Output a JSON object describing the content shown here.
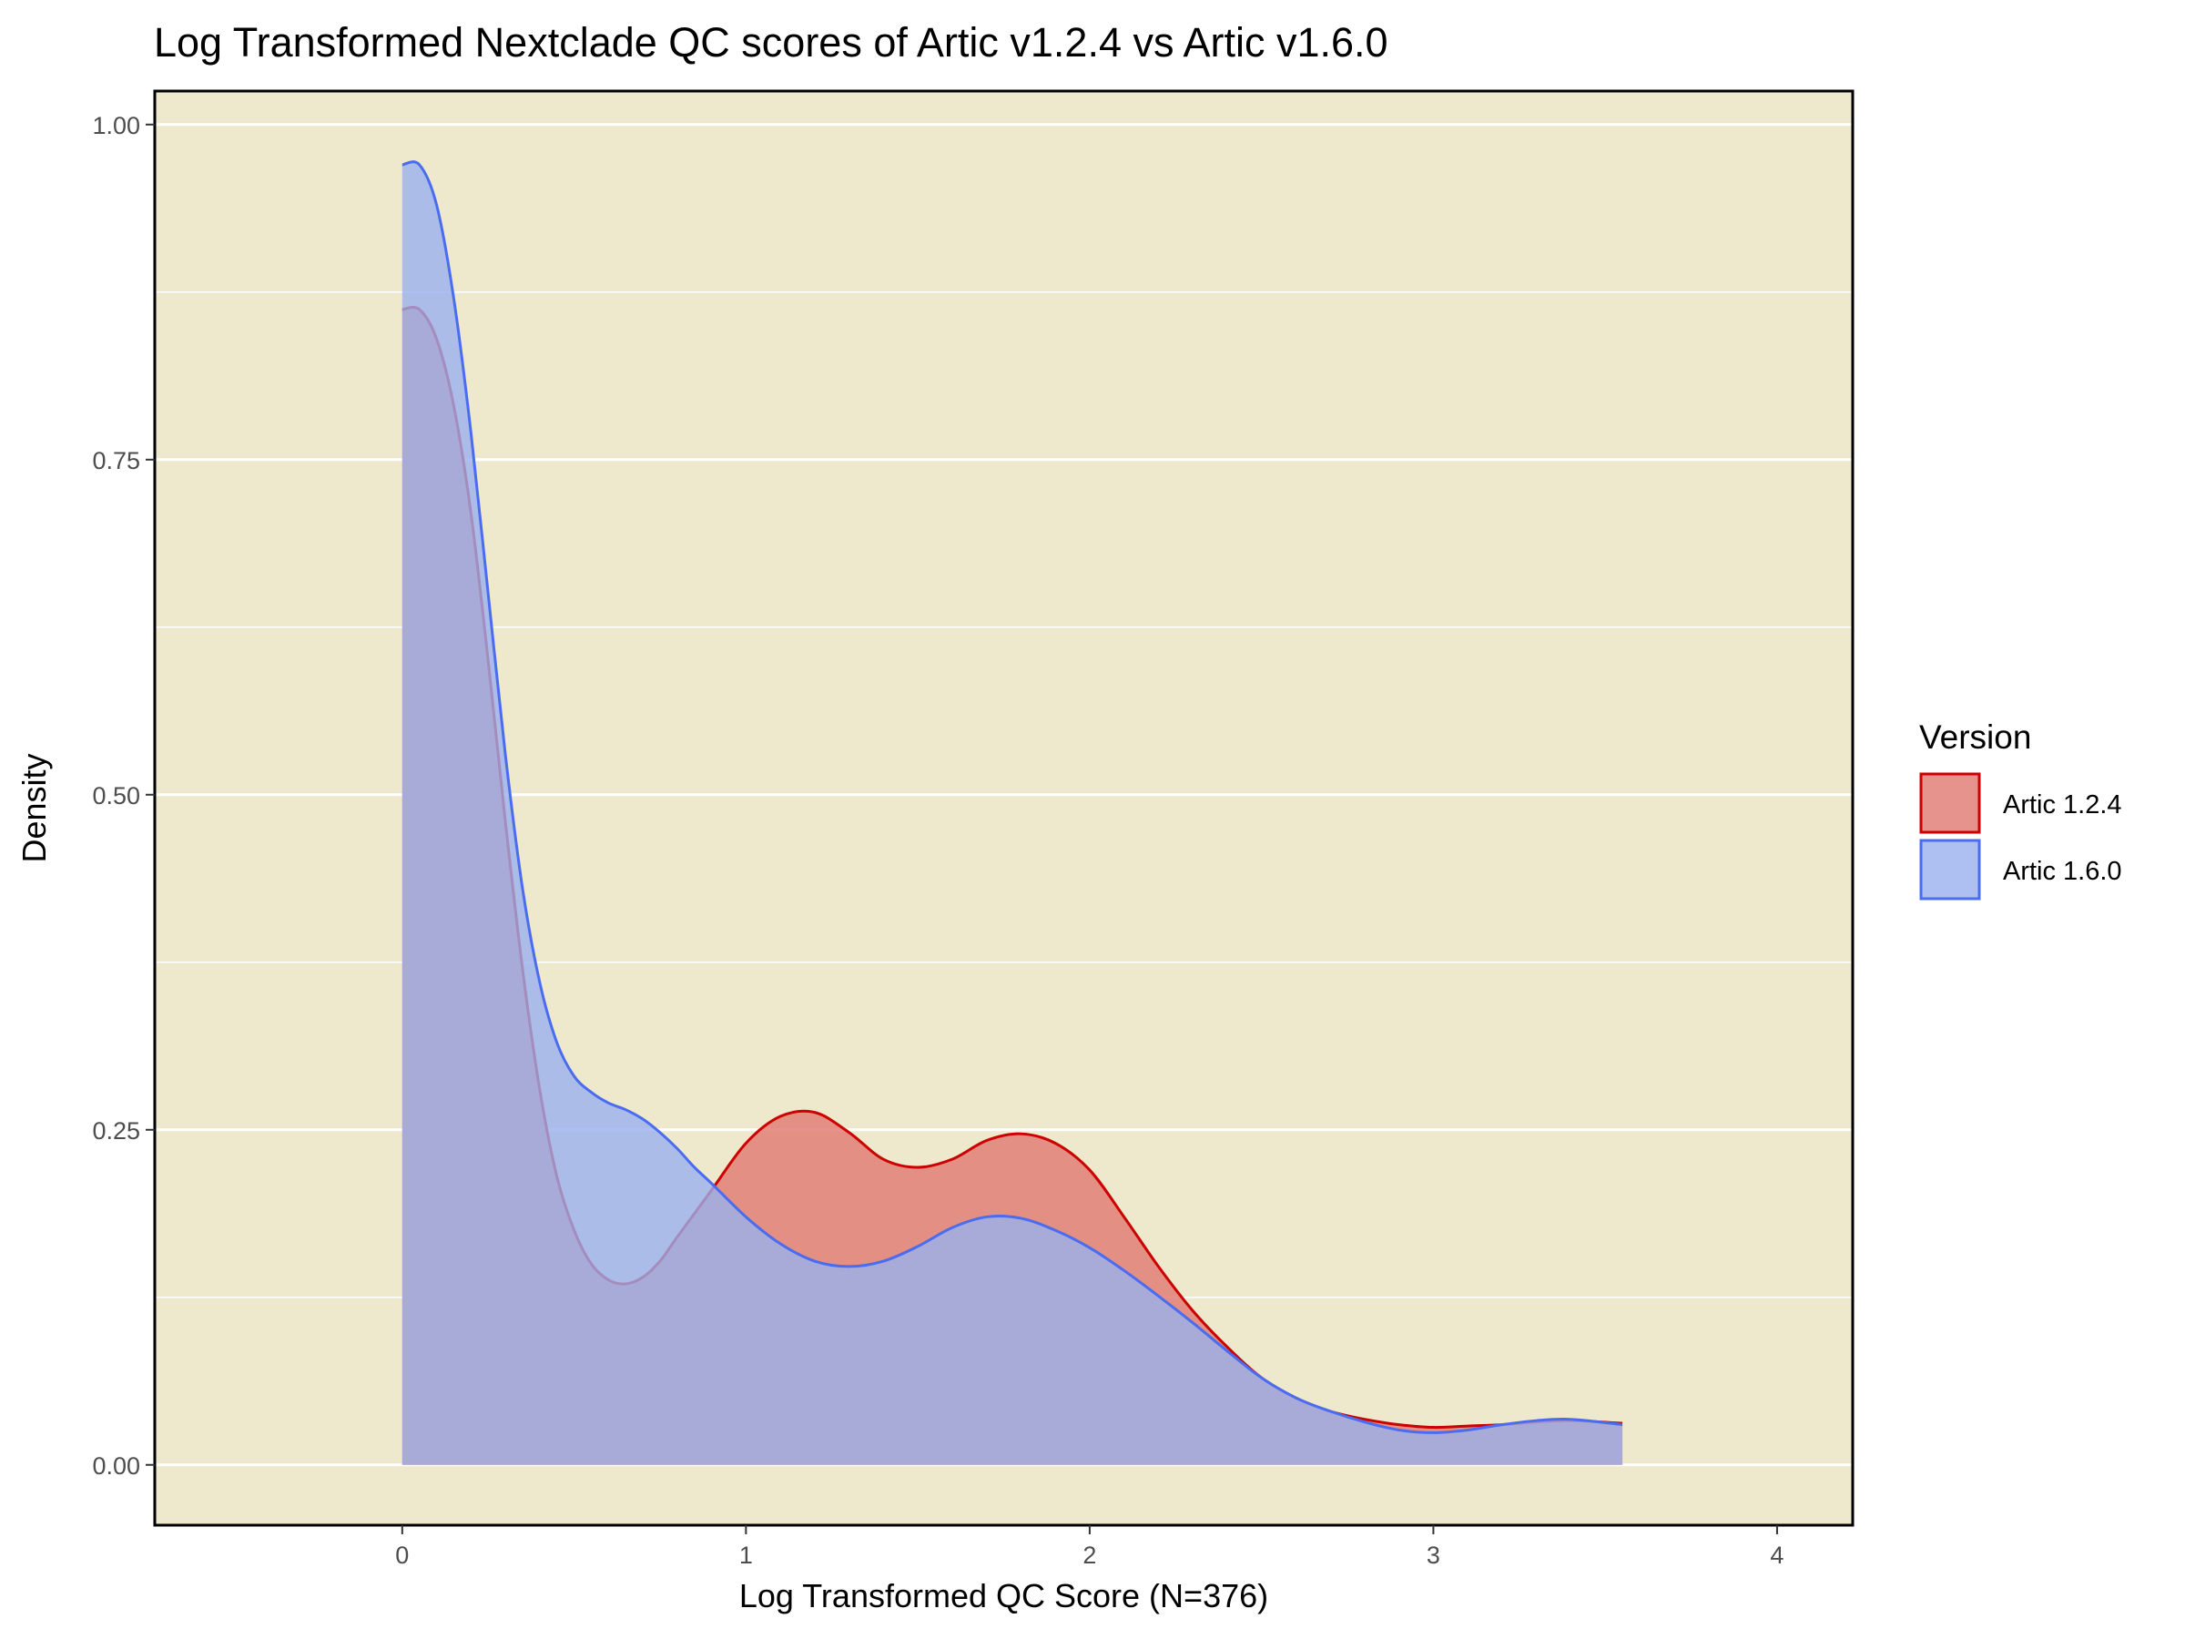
{
  "chart_data": {
    "type": "area",
    "title": "Log Transformed Nextclade QC scores of Artic v1.2.4 vs Artic v1.6.0",
    "xlabel": "Log Transformed QC Score (N=376)",
    "ylabel": "Density",
    "xlim": [
      -0.72,
      4.22
    ],
    "ylim": [
      -0.045,
      1.025
    ],
    "x_ticks": [
      0,
      1,
      2,
      3,
      4
    ],
    "x_tick_labels": [
      "0",
      "1",
      "2",
      "3",
      "4"
    ],
    "y_ticks": [
      0,
      0.25,
      0.5,
      0.75,
      1.0
    ],
    "y_tick_labels": [
      "0.00",
      "0.25",
      "0.50",
      "0.75",
      "1.00"
    ],
    "y_minor_ticks": [
      0.125,
      0.375,
      0.625,
      0.875
    ],
    "grid": true,
    "panel_background": "#EEE8CD",
    "legend": {
      "title": "Version",
      "position": "right"
    },
    "series": [
      {
        "name": "Artic 1.2.4",
        "fill": "#E07870",
        "line": "#CC0000",
        "x": [
          0,
          0.05,
          0.1,
          0.15,
          0.2,
          0.25,
          0.3,
          0.35,
          0.4,
          0.45,
          0.5,
          0.55,
          0.6,
          0.65,
          0.7,
          0.75,
          0.8,
          0.9,
          1.0,
          1.1,
          1.2,
          1.3,
          1.4,
          1.5,
          1.6,
          1.7,
          1.8,
          1.9,
          2.0,
          2.1,
          2.2,
          2.3,
          2.4,
          2.5,
          2.6,
          2.7,
          2.8,
          2.9,
          3.0,
          3.1,
          3.2,
          3.3,
          3.4,
          3.55
        ],
        "values": [
          0.862,
          0.862,
          0.84,
          0.79,
          0.71,
          0.6,
          0.48,
          0.37,
          0.28,
          0.215,
          0.175,
          0.15,
          0.138,
          0.135,
          0.14,
          0.152,
          0.17,
          0.205,
          0.24,
          0.26,
          0.263,
          0.248,
          0.228,
          0.222,
          0.228,
          0.242,
          0.247,
          0.24,
          0.22,
          0.185,
          0.148,
          0.115,
          0.088,
          0.065,
          0.05,
          0.04,
          0.034,
          0.03,
          0.028,
          0.029,
          0.03,
          0.032,
          0.033,
          0.031
        ]
      },
      {
        "name": "Artic 1.6.0",
        "fill": "#98B0EE",
        "line": "#4A6CF0",
        "x": [
          0,
          0.05,
          0.1,
          0.15,
          0.2,
          0.25,
          0.3,
          0.35,
          0.4,
          0.45,
          0.5,
          0.55,
          0.6,
          0.65,
          0.7,
          0.75,
          0.8,
          0.85,
          0.9,
          1.0,
          1.1,
          1.2,
          1.3,
          1.4,
          1.5,
          1.6,
          1.7,
          1.8,
          1.9,
          2.0,
          2.1,
          2.2,
          2.3,
          2.4,
          2.5,
          2.6,
          2.7,
          2.8,
          2.9,
          3.0,
          3.1,
          3.2,
          3.3,
          3.4,
          3.55
        ],
        "values": [
          0.97,
          0.97,
          0.94,
          0.87,
          0.77,
          0.65,
          0.53,
          0.43,
          0.36,
          0.315,
          0.29,
          0.278,
          0.27,
          0.265,
          0.258,
          0.248,
          0.236,
          0.222,
          0.21,
          0.185,
          0.165,
          0.152,
          0.148,
          0.152,
          0.163,
          0.177,
          0.185,
          0.184,
          0.175,
          0.162,
          0.145,
          0.126,
          0.106,
          0.085,
          0.065,
          0.05,
          0.04,
          0.032,
          0.026,
          0.024,
          0.026,
          0.03,
          0.033,
          0.034,
          0.03
        ]
      }
    ]
  }
}
